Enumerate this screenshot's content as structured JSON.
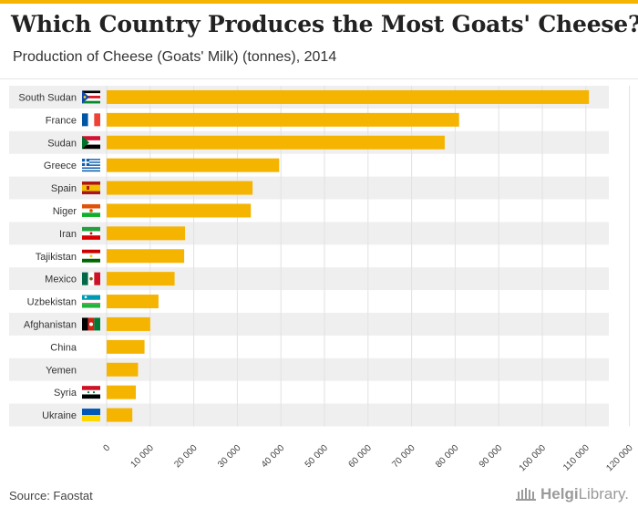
{
  "title": "Which Country Produces the Most Goats' Cheese?",
  "subtitle": "Production of Cheese (Goats' Milk) (tonnes), 2014",
  "source": "Source: Faostat",
  "logo": {
    "brand": "Helgi",
    "suffix": "Library."
  },
  "colors": {
    "bar": "#f5b400",
    "band": "#efefef",
    "accent": "#f5b400"
  },
  "chart_data": {
    "type": "bar",
    "orientation": "horizontal",
    "title": "Which Country Produces the Most Goats' Cheese?",
    "subtitle": "Production of Cheese (Goats' Milk) (tonnes), 2014",
    "xlabel": "",
    "ylabel": "",
    "xlim": [
      0,
      120000
    ],
    "grid": true,
    "categories": [
      "South Sudan",
      "France",
      "Sudan",
      "Greece",
      "Spain",
      "Niger",
      "Iran",
      "Tajikistan",
      "Mexico",
      "Uzbekistan",
      "Afghanistan",
      "China",
      "Yemen",
      "Syria",
      "Ukraine"
    ],
    "values": [
      110700,
      80900,
      77600,
      39600,
      33500,
      33100,
      18000,
      17800,
      15600,
      11900,
      10000,
      8700,
      7200,
      6700,
      5900
    ],
    "ticks": [
      0,
      10000,
      20000,
      30000,
      40000,
      50000,
      60000,
      70000,
      80000,
      90000,
      100000,
      110000,
      120000
    ],
    "tick_labels": [
      "0",
      "10 000",
      "20 000",
      "30 000",
      "40 000",
      "50 000",
      "60 000",
      "70 000",
      "80 000",
      "90 000",
      "100 000",
      "110 000",
      "120 000"
    ],
    "flags": [
      "south-sudan-flag",
      "france-flag",
      "sudan-flag",
      "greece-flag",
      "spain-flag",
      "niger-flag",
      "iran-flag",
      "tajikistan-flag",
      "mexico-flag",
      "uzbekistan-flag",
      "afghanistan-flag",
      "",
      "",
      "syria-flag",
      "ukraine-flag"
    ]
  }
}
